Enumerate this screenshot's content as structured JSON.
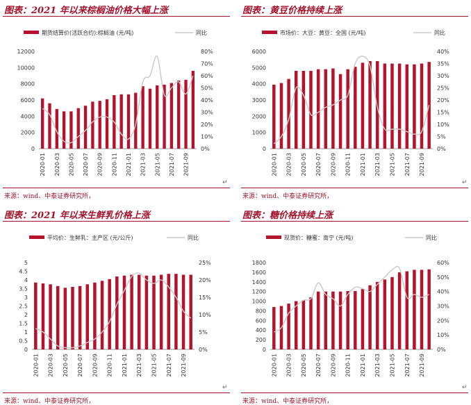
{
  "chart_data": [
    {
      "type": "bar",
      "title": "图表：2021 年以来棕榈油价格大幅上涨",
      "source": "来源：wind、中泰证券研究所，",
      "x": [
        "2020-01",
        "2020-02",
        "2020-03",
        "2020-04",
        "2020-05",
        "2020-06",
        "2020-07",
        "2020-08",
        "2020-09",
        "2020-10",
        "2020-11",
        "2020-12",
        "2021-01",
        "2021-02",
        "2021-03",
        "2021-04",
        "2021-05",
        "2021-06",
        "2021-07",
        "2021-08",
        "2021-09",
        "2021-10"
      ],
      "xticks": [
        "2020-01",
        "2020-03",
        "2020-05",
        "2020-07",
        "2020-09",
        "2020-11",
        "2021-01",
        "2021-03",
        "2021-05",
        "2021-07",
        "2021-09"
      ],
      "series": [
        {
          "name": "期货结算价(活跃合约):棕榈油  (元/吨)",
          "axis": "left",
          "color": "#b5122b",
          "values": [
            6200,
            5600,
            4900,
            4600,
            4600,
            5000,
            5300,
            5800,
            5900,
            6100,
            6600,
            6700,
            6700,
            6900,
            7700,
            7400,
            7800,
            7900,
            8100,
            8400,
            8500,
            9600
          ]
        },
        {
          "name": "同比",
          "axis": "right",
          "type": "line",
          "color": "#c8c8c8",
          "values": [
            33,
            28,
            14,
            6,
            5,
            10,
            15,
            22,
            26,
            26,
            22,
            12,
            8,
            20,
            55,
            60,
            76,
            44,
            50,
            55,
            45,
            60
          ]
        }
      ],
      "ylim_left": [
        0,
        12000
      ],
      "yticks_left": [
        "0",
        "2000",
        "4000",
        "6000",
        "8000",
        "10000",
        "12000"
      ],
      "ylim_right": [
        0,
        80
      ],
      "yticks_right": [
        "0%",
        "10%",
        "20%",
        "30%",
        "40%",
        "50%",
        "60%",
        "70%",
        "80%"
      ]
    },
    {
      "type": "bar",
      "title": "图表：黄豆价格持续上涨",
      "source": "来源：wind、中泰证券研究所，",
      "x": [
        "2020-01",
        "2020-02",
        "2020-03",
        "2020-04",
        "2020-05",
        "2020-06",
        "2020-07",
        "2020-08",
        "2020-09",
        "2020-10",
        "2020-11",
        "2020-12",
        "2021-01",
        "2021-02",
        "2021-03",
        "2021-04",
        "2021-05",
        "2021-06",
        "2021-07",
        "2021-08",
        "2021-09",
        "2021-10"
      ],
      "xticks": [
        "2020-01",
        "2020-03",
        "2020-05",
        "2020-07",
        "2020-09",
        "2020-11",
        "2021-01",
        "2021-03",
        "2021-05",
        "2021-07",
        "2021-09"
      ],
      "series": [
        {
          "name": "市场价：大豆：黄豆：全国  (元/吨)",
          "axis": "left",
          "color": "#b5122b",
          "values": [
            3950,
            4050,
            4300,
            4800,
            4800,
            4800,
            4900,
            4900,
            4950,
            4600,
            4900,
            5050,
            5300,
            5400,
            5400,
            5250,
            5250,
            5250,
            5200,
            5200,
            5250,
            5350
          ]
        },
        {
          "name": "同比",
          "axis": "right",
          "type": "line",
          "color": "#c8c8c8",
          "values": [
            2,
            5,
            12,
            25,
            22,
            14,
            15,
            17,
            18,
            20,
            22,
            35,
            38,
            34,
            17,
            8,
            8,
            8,
            7,
            6,
            7,
            18
          ]
        }
      ],
      "ylim_left": [
        0,
        6000
      ],
      "yticks_left": [
        "0",
        "1000",
        "2000",
        "3000",
        "4000",
        "5000",
        "6000"
      ],
      "ylim_right": [
        0,
        40
      ],
      "yticks_right": [
        "0%",
        "5%",
        "10%",
        "15%",
        "20%",
        "25%",
        "30%",
        "35%",
        "40%"
      ]
    },
    {
      "type": "bar",
      "title": "图表：2021 年以来生鲜乳价格上涨",
      "source": "来源：wind、中泰证券研究所，",
      "x": [
        "2020-01",
        "2020-02",
        "2020-03",
        "2020-04",
        "2020-05",
        "2020-06",
        "2020-07",
        "2020-08",
        "2020-09",
        "2020-10",
        "2020-11",
        "2020-12",
        "2021-01",
        "2021-02",
        "2021-03",
        "2021-04",
        "2021-05",
        "2021-06",
        "2021-07",
        "2021-08",
        "2021-09",
        "2021-10"
      ],
      "xticks": [
        "2020-01",
        "2020-03",
        "2020-05",
        "2020-07",
        "2020-09",
        "2020-11",
        "2021-01",
        "2021-03",
        "2021-05",
        "2021-07",
        "2021-09"
      ],
      "series": [
        {
          "name": "平均价：生鲜乳：主产区  (元/公斤)",
          "axis": "left",
          "color": "#b5122b",
          "values": [
            3.85,
            3.8,
            3.75,
            3.65,
            3.55,
            3.6,
            3.65,
            3.75,
            3.85,
            3.95,
            4.05,
            4.2,
            4.25,
            4.3,
            4.3,
            4.25,
            4.25,
            4.3,
            4.35,
            4.35,
            4.3,
            4.3
          ]
        },
        {
          "name": "同比",
          "axis": "right",
          "type": "line",
          "color": "#c8c8c8",
          "values": [
            6,
            5,
            3,
            1,
            0.5,
            0.5,
            1,
            2,
            3,
            5,
            8,
            13,
            17,
            21,
            22,
            20,
            19,
            20,
            18,
            15,
            11,
            9
          ]
        }
      ],
      "ylim_left": [
        0,
        5
      ],
      "yticks_left": [
        "0",
        "0.5",
        "1",
        "1.5",
        "2",
        "2.5",
        "3",
        "3.5",
        "4",
        "4.5",
        "5"
      ],
      "ylim_right": [
        0,
        25
      ],
      "yticks_right": [
        "0%",
        "5%",
        "10%",
        "15%",
        "20%",
        "25%"
      ]
    },
    {
      "type": "bar",
      "title": "图表：糖价格持续上涨",
      "source": "来源：wind、中泰证券研究所，",
      "x": [
        "2020-01",
        "2020-02",
        "2020-03",
        "2020-04",
        "2020-05",
        "2020-06",
        "2020-07",
        "2020-08",
        "2020-09",
        "2020-10",
        "2020-11",
        "2020-12",
        "2021-01",
        "2021-02",
        "2021-03",
        "2021-04",
        "2021-05",
        "2021-06",
        "2021-07",
        "2021-08",
        "2021-09",
        "2021-10"
      ],
      "xticks": [
        "2020-01",
        "2020-03",
        "2020-05",
        "2020-07",
        "2020-09",
        "2020-11",
        "2021-01",
        "2021-03",
        "2021-05",
        "2021-07",
        "2021-09"
      ],
      "series": [
        {
          "name": "现货价：糖蜜：南宁  (元/吨)",
          "axis": "left",
          "color": "#b5122b",
          "values": [
            880,
            900,
            950,
            1000,
            1020,
            1080,
            1200,
            1200,
            1200,
            1200,
            1210,
            1210,
            1250,
            1330,
            1400,
            1450,
            1500,
            1600,
            1620,
            1650,
            1650,
            1660
          ]
        },
        {
          "name": "同比",
          "axis": "right",
          "type": "line",
          "color": "#c8c8c8",
          "values": [
            12,
            15,
            25,
            30,
            34,
            35,
            46,
            38,
            35,
            30,
            38,
            43,
            42,
            40,
            45,
            50,
            55,
            56,
            36,
            38,
            36,
            38
          ]
        }
      ],
      "ylim_left": [
        0,
        1800
      ],
      "yticks_left": [
        "0",
        "200",
        "400",
        "600",
        "800",
        "1000",
        "1200",
        "1400",
        "1600",
        "1800"
      ],
      "ylim_right": [
        0,
        60
      ],
      "yticks_right": [
        "0%",
        "10%",
        "20%",
        "30%",
        "40%",
        "50%",
        "60%"
      ]
    }
  ]
}
